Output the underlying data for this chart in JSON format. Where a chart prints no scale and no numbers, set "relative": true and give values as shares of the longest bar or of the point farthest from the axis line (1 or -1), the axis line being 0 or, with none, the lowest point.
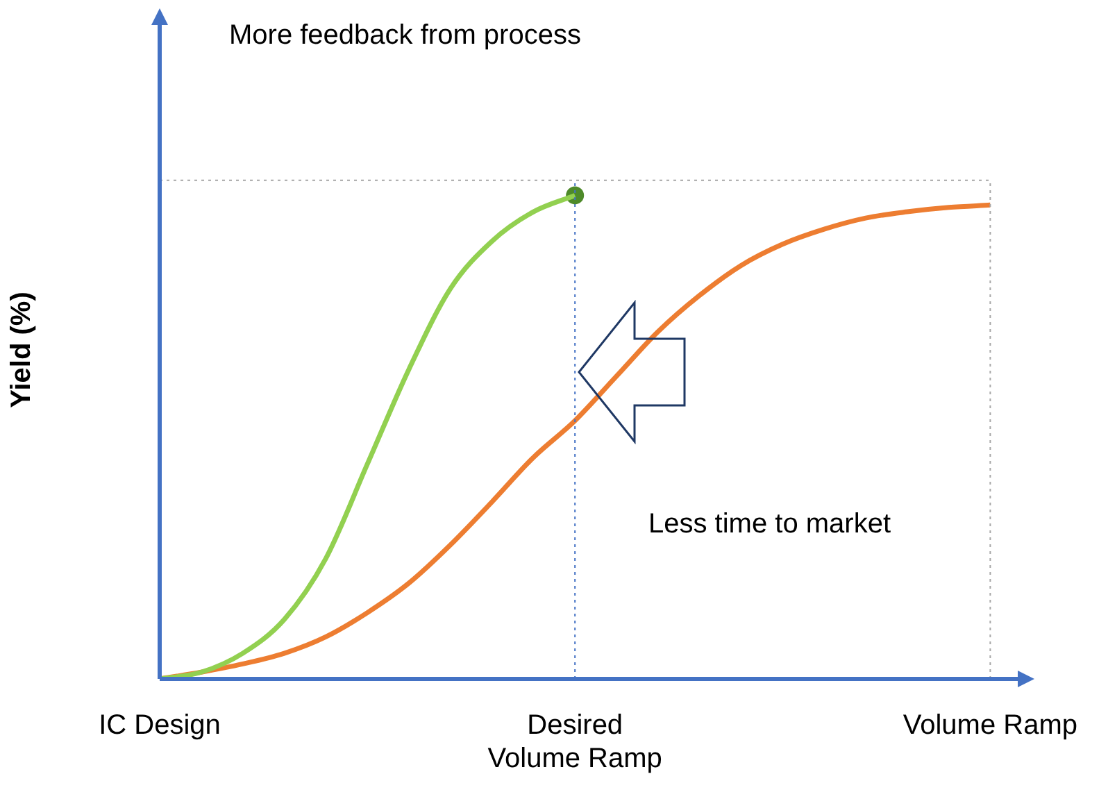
{
  "chart_data": {
    "type": "line",
    "relative": true,
    "ylabel": "Yield (%)",
    "annotations": [
      "More feedback from process",
      "Less time to market"
    ],
    "categories": [
      "IC Design",
      null,
      null,
      null,
      null,
      null,
      null,
      null,
      null,
      null,
      "Desired\nVolume Ramp",
      null,
      null,
      null,
      null,
      null,
      null,
      null,
      null,
      null,
      "Volume Ramp"
    ],
    "series": [
      {
        "color": "#92d050",
        "values": [
          0,
          0.014,
          0.053,
          0.123,
          0.249,
          0.444,
          0.64,
          0.807,
          0.905,
          0.966,
          1,
          null,
          null,
          null,
          null,
          null,
          null,
          null,
          null,
          null,
          null
        ]
      },
      {
        "color": "#ed7d31",
        "values": [
          0,
          0.014,
          0.031,
          0.053,
          0.087,
          0.137,
          0.198,
          0.277,
          0.366,
          0.458,
          0.534,
          0.626,
          0.718,
          0.793,
          0.855,
          0.899,
          0.93,
          0.953,
          0.966,
          0.975,
          0.98
        ]
      },
      {
        "type": "scatter",
        "marker": "circle",
        "color": "#4e8a2a",
        "values": [
          null,
          null,
          null,
          null,
          null,
          null,
          null,
          null,
          null,
          null,
          1,
          null,
          null,
          null,
          null,
          null,
          null,
          null,
          null,
          null,
          null
        ]
      }
    ],
    "ref_lines": [
      {
        "axis": "x",
        "value": "Desired\nVolume Ramp",
        "color": "#4472c4",
        "line_style": "dotted"
      },
      {
        "axis": "x",
        "value": "Volume Ramp",
        "color": "#a6a6a6",
        "line_style": "dotted"
      },
      {
        "axis": "y",
        "value": 1.031,
        "color": "#a6a6a6",
        "line_style": "dotted"
      }
    ],
    "grid": false,
    "legend": false
  }
}
